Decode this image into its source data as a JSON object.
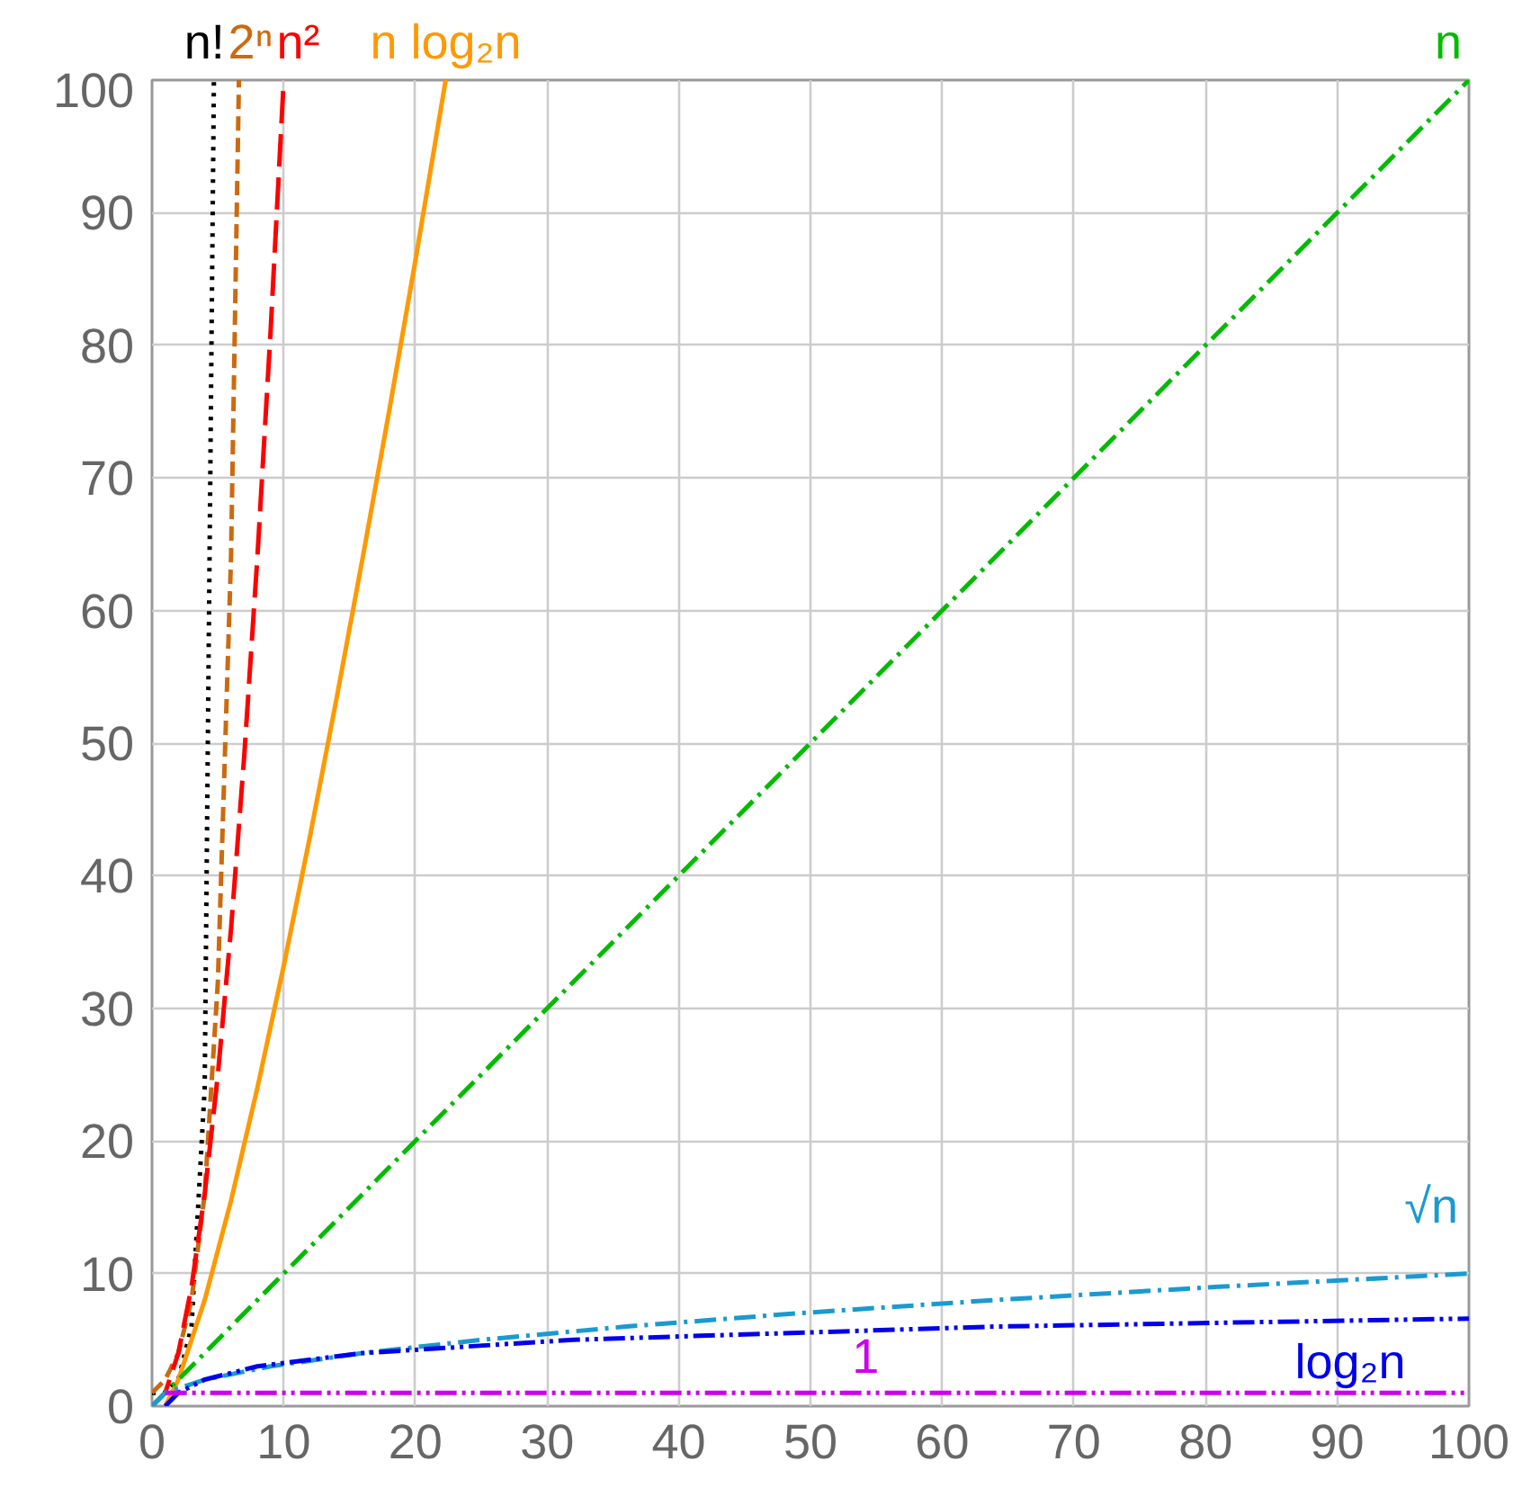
{
  "chart_data": {
    "type": "line",
    "xlim": [
      0,
      100
    ],
    "ylim": [
      0,
      100
    ],
    "xticks": [
      0,
      10,
      20,
      30,
      40,
      50,
      60,
      70,
      80,
      90,
      100
    ],
    "yticks": [
      0,
      10,
      20,
      30,
      40,
      50,
      60,
      70,
      80,
      90,
      100
    ],
    "grid": true,
    "marker": "none",
    "series": [
      {
        "name": "n!",
        "color": "#000000",
        "line_style": "dotted",
        "x": [
          0,
          1,
          2,
          3,
          4,
          4.7
        ],
        "values": [
          1,
          1,
          2,
          6,
          24,
          100
        ]
      },
      {
        "name": "2ⁿ",
        "color": "#cc6a10",
        "line_style": "dashed",
        "x": [
          0,
          1,
          2,
          3,
          4,
          5,
          6,
          6.6
        ],
        "values": [
          1,
          2,
          4,
          8,
          16,
          32,
          64,
          100
        ]
      },
      {
        "name": "n²",
        "color": "#ff0000",
        "line_style": "longdash",
        "x": [
          0,
          1,
          2,
          3,
          4,
          5,
          6,
          7,
          8,
          9,
          10
        ],
        "values": [
          0,
          1,
          4,
          9,
          16,
          25,
          36,
          49,
          64,
          81,
          100
        ]
      },
      {
        "name": "n log₂n",
        "color": "#ff9900",
        "line_style": "solid",
        "x": [
          1,
          2,
          4,
          6,
          8,
          10,
          12,
          14,
          16,
          18,
          20,
          22.3
        ],
        "values": [
          0,
          2,
          8,
          15.5,
          24,
          33.2,
          43,
          53.3,
          64,
          75,
          86.4,
          100
        ]
      },
      {
        "name": "n",
        "color": "#00bb00",
        "line_style": "dashdot",
        "x": [
          0,
          100
        ],
        "values": [
          0,
          100
        ]
      },
      {
        "name": "√n",
        "color": "#1a9ad0",
        "line_style": "dashdot",
        "x": [
          0,
          1,
          4,
          9,
          16,
          25,
          36,
          49,
          64,
          81,
          100
        ],
        "values": [
          0,
          1,
          2,
          3,
          4,
          5,
          6,
          7,
          8,
          9,
          10
        ]
      },
      {
        "name": "log₂n",
        "color": "#0000ee",
        "line_style": "dashdotdot",
        "x": [
          1,
          2,
          4,
          8,
          16,
          32,
          64,
          100
        ],
        "values": [
          0,
          1,
          2,
          3,
          4,
          5,
          6,
          6.6
        ]
      },
      {
        "name": "1",
        "color": "#cc00ee",
        "line_style": "dashdotdot",
        "x": [
          1,
          100
        ],
        "values": [
          1,
          1
        ]
      }
    ]
  }
}
